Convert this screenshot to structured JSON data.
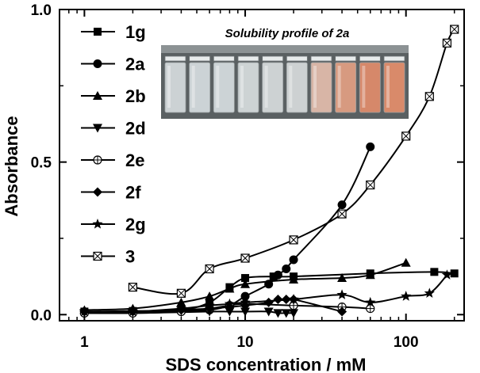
{
  "chart_data": {
    "type": "line",
    "x_scale": "log",
    "xlabel": "SDS concentration / mM",
    "ylabel": "Absorbance",
    "xlim": [
      0.7,
      230
    ],
    "ylim": [
      -0.02,
      1.0
    ],
    "x_ticks": [
      1,
      10,
      100
    ],
    "x_tick_labels": [
      "1",
      "10",
      "100"
    ],
    "y_ticks": [
      0.0,
      0.5,
      1.0
    ],
    "y_tick_labels": [
      "0.0",
      "0.5",
      "1.0"
    ],
    "grid": false,
    "legend_placement": "left",
    "inset": {
      "title": "Solubility profile of 2a",
      "vials": [
        "#ccd2d4",
        "#ccd3d6",
        "#ccd3d6",
        "#cdd3d4",
        "#cdd2d3",
        "#cdd1d2",
        "#d8b5a6",
        "#d79a80",
        "#d6886a",
        "#d98a6a"
      ]
    },
    "series": [
      {
        "name": "1g",
        "marker": "square",
        "x": [
          1,
          2,
          4,
          6,
          8,
          10,
          15,
          20,
          60,
          150,
          200
        ],
        "y": [
          0.01,
          0.012,
          0.015,
          0.04,
          0.09,
          0.12,
          0.125,
          0.125,
          0.135,
          0.14,
          0.135
        ]
      },
      {
        "name": "2a",
        "marker": "circle",
        "x": [
          1,
          2,
          4,
          6,
          8,
          10,
          14,
          16,
          18,
          20,
          40,
          60
        ],
        "y": [
          0.01,
          0.01,
          0.01,
          0.015,
          0.03,
          0.06,
          0.1,
          0.13,
          0.15,
          0.18,
          0.36,
          0.55
        ]
      },
      {
        "name": "2b",
        "marker": "triangle-up",
        "x": [
          1,
          2,
          4,
          6,
          8,
          10,
          20,
          40,
          60,
          100
        ],
        "y": [
          0.015,
          0.02,
          0.04,
          0.06,
          0.085,
          0.1,
          0.115,
          0.12,
          0.13,
          0.17
        ]
      },
      {
        "name": "2d",
        "marker": "triangle-down",
        "x": [
          1,
          2,
          4,
          6,
          8,
          10,
          14,
          16,
          18,
          20
        ],
        "y": [
          0.005,
          0.005,
          0.008,
          0.01,
          0.01,
          0.01,
          0.01,
          0.005,
          0.005,
          0.005
        ]
      },
      {
        "name": "2e",
        "marker": "circle-plus",
        "x": [
          1,
          2,
          4,
          6,
          8,
          10,
          20,
          40,
          60
        ],
        "y": [
          0.005,
          0.005,
          0.01,
          0.02,
          0.03,
          0.035,
          0.03,
          0.025,
          0.02
        ]
      },
      {
        "name": "2f",
        "marker": "diamond",
        "x": [
          1,
          2,
          4,
          6,
          8,
          10,
          14,
          16,
          18,
          20,
          40
        ],
        "y": [
          0.01,
          0.01,
          0.015,
          0.02,
          0.025,
          0.03,
          0.04,
          0.05,
          0.05,
          0.05,
          0.01
        ]
      },
      {
        "name": "2g",
        "marker": "star",
        "x": [
          1,
          2,
          4,
          6,
          8,
          10,
          20,
          40,
          60,
          100,
          140,
          180
        ],
        "y": [
          0.01,
          0.01,
          0.02,
          0.03,
          0.035,
          0.04,
          0.05,
          0.065,
          0.04,
          0.06,
          0.07,
          0.13
        ]
      },
      {
        "name": "3",
        "marker": "square-x",
        "x": [
          2,
          4,
          6,
          10,
          20,
          40,
          60,
          100,
          140,
          180,
          200
        ],
        "y": [
          0.09,
          0.07,
          0.15,
          0.185,
          0.245,
          0.33,
          0.425,
          0.585,
          0.715,
          0.89,
          0.935
        ]
      }
    ]
  }
}
